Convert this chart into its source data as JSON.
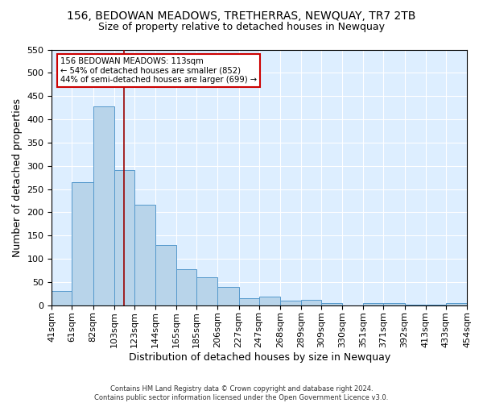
{
  "title": "156, BEDOWAN MEADOWS, TRETHERRAS, NEWQUAY, TR7 2TB",
  "subtitle": "Size of property relative to detached houses in Newquay",
  "xlabel": "Distribution of detached houses by size in Newquay",
  "ylabel": "Number of detached properties",
  "footnote1": "Contains HM Land Registry data © Crown copyright and database right 2024.",
  "footnote2": "Contains public sector information licensed under the Open Government Licence v3.0.",
  "bin_labels": [
    "41sqm",
    "61sqm",
    "82sqm",
    "103sqm",
    "123sqm",
    "144sqm",
    "165sqm",
    "185sqm",
    "206sqm",
    "227sqm",
    "247sqm",
    "268sqm",
    "289sqm",
    "309sqm",
    "330sqm",
    "351sqm",
    "371sqm",
    "392sqm",
    "413sqm",
    "433sqm",
    "454sqm"
  ],
  "bin_edges": [
    41,
    61,
    82,
    103,
    123,
    144,
    165,
    185,
    206,
    227,
    247,
    268,
    289,
    309,
    330,
    351,
    371,
    392,
    413,
    433,
    454
  ],
  "bar_heights": [
    30,
    265,
    428,
    291,
    216,
    129,
    77,
    60,
    40,
    15,
    19,
    9,
    11,
    5,
    0,
    5,
    5,
    2,
    2,
    5
  ],
  "bar_color": "#b8d4ea",
  "bar_edge_color": "#5599cc",
  "background_color": "#ddeeff",
  "grid_color": "#ffffff",
  "property_size": 113,
  "marker_line_color": "#990000",
  "annotation_line1": "156 BEDOWAN MEADOWS: 113sqm",
  "annotation_line2": "← 54% of detached houses are smaller (852)",
  "annotation_line3": "44% of semi-detached houses are larger (699) →",
  "annotation_box_edge_color": "#cc0000",
  "ylim": [
    0,
    550
  ],
  "yticks": [
    0,
    50,
    100,
    150,
    200,
    250,
    300,
    350,
    400,
    450,
    500,
    550
  ]
}
